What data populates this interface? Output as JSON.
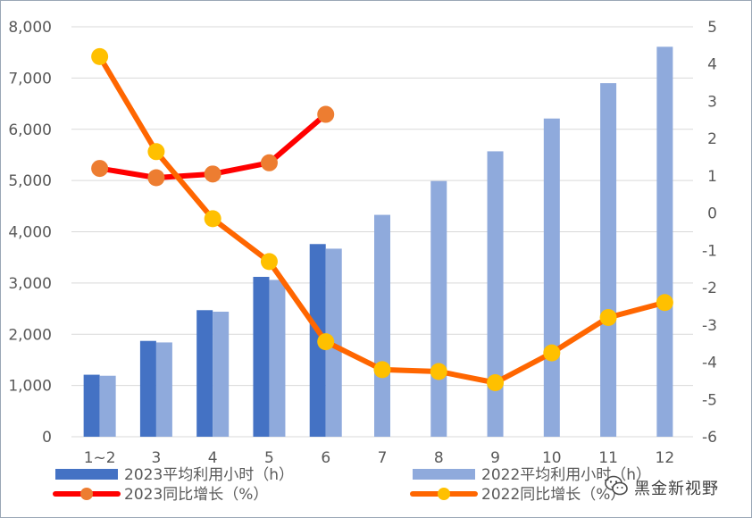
{
  "chart_data": {
    "type": "bar+line",
    "categories": [
      "1~2",
      "3",
      "4",
      "5",
      "6",
      "7",
      "8",
      "9",
      "10",
      "11",
      "12"
    ],
    "y_left": {
      "ticks": [
        "0",
        "1,000",
        "2,000",
        "3,000",
        "4,000",
        "5,000",
        "6,000",
        "7,000",
        "8,000"
      ],
      "range": [
        0,
        8000
      ]
    },
    "y_right": {
      "ticks": [
        "-6",
        "-5",
        "-4",
        "-3",
        "-2",
        "-1",
        "0",
        "1",
        "2",
        "3",
        "4",
        "5"
      ],
      "range": [
        -6,
        5
      ]
    },
    "series": [
      {
        "name": "2023平均利用小时（h）",
        "kind": "bar",
        "axis": "left",
        "color": "#4472c4",
        "values": [
          1210,
          1870,
          2470,
          3120,
          3760,
          null,
          null,
          null,
          null,
          null,
          null
        ]
      },
      {
        "name": "2022平均利用小时（h）",
        "kind": "bar",
        "axis": "left",
        "color": "#8faadc",
        "values": [
          1190,
          1840,
          2440,
          3060,
          3670,
          4330,
          4990,
          5570,
          6210,
          6900,
          7610
        ]
      },
      {
        "name": "2023同比增长（%）",
        "kind": "line",
        "axis": "right",
        "color": "#ff0000",
        "marker_color": "#ed7d31",
        "values": [
          1.2,
          0.95,
          1.05,
          1.35,
          2.65,
          null,
          null,
          null,
          null,
          null,
          null
        ]
      },
      {
        "name": "2022同比增长（%）",
        "kind": "line",
        "axis": "right",
        "color": "#ff6600",
        "marker_color": "#ffc000",
        "values": [
          4.2,
          1.65,
          -0.15,
          -1.3,
          -3.45,
          -4.2,
          -4.25,
          -4.55,
          -3.75,
          -2.8,
          -2.4
        ]
      }
    ],
    "grid": true,
    "legend": "bottom"
  },
  "watermark": {
    "icon": "wechat-icon",
    "text": "黑金新视野"
  }
}
